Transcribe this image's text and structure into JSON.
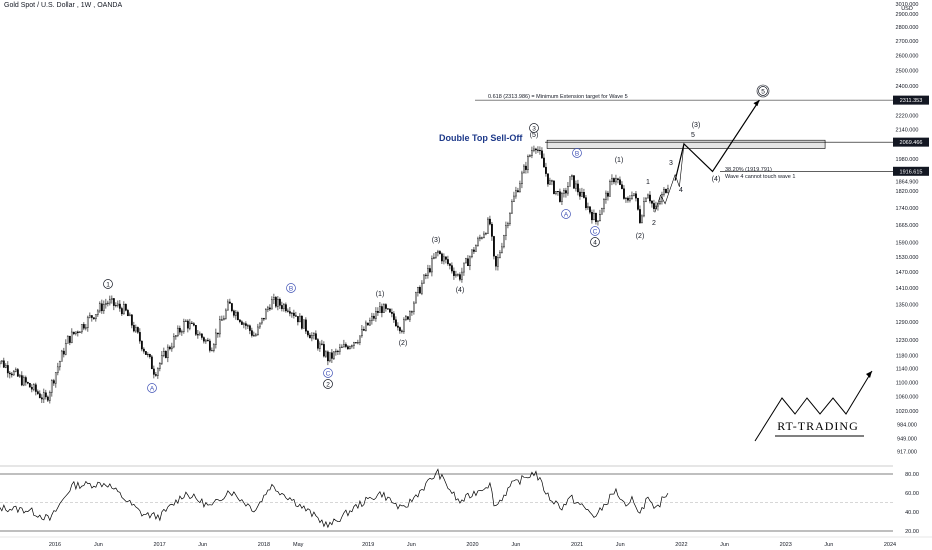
{
  "header": {
    "symbol": "Gold Spot / U.S. Dollar",
    "interval": "1W",
    "exchange": "OANDA",
    "sep1": ",",
    "sep2": ","
  },
  "colors": {
    "background": "#ffffff",
    "candle": "#000000",
    "elliott_circle": "#3f51b5",
    "text": "#131722",
    "price_tag_bg": "#131722",
    "projection": "#000000",
    "rsi_line": "#000000",
    "grid_dash": "#b0b0b0",
    "sell_off_text": "#1e3a8a"
  },
  "chart_data": [
    {
      "type": "candlestick",
      "title": "",
      "price_axis": {
        "unit_label": "USD",
        "ticks": [
          917.0,
          949.0,
          984.0,
          1020.0,
          1060.0,
          1100.0,
          1140.0,
          1180.0,
          1230.0,
          1290.0,
          1350.0,
          1410.0,
          1470.0,
          1530.0,
          1590.0,
          1665.0,
          1740.0,
          1820.0,
          1864.9,
          1980.0,
          2060.0,
          2140.0,
          2220.0,
          2300.0,
          2400.0,
          2500.0,
          2600.0,
          2700.0,
          2800.0,
          2900.0,
          3010.0
        ],
        "tick_labels": [
          "917.000",
          "949.000",
          "984.000",
          "1020.000",
          "1060.000",
          "1100.000",
          "1140.000",
          "1180.000",
          "1230.000",
          "1290.000",
          "1350.000",
          "1410.000",
          "1470.000",
          "1530.000",
          "1590.000",
          "1665.000",
          "1740.000",
          "1820.000",
          "1864.900",
          "1980.000",
          "2060.000",
          "2140.000",
          "2220.000",
          "2300.000",
          "2400.000",
          "2500.000",
          "2600.000",
          "2700.000",
          "2800.000",
          "2900.000",
          "3010.000"
        ],
        "scale": "log"
      },
      "time_axis": {
        "labels": [
          "2016",
          "Jun",
          "2017",
          "Jun",
          "2018",
          "May",
          "2019",
          "Jun",
          "2020",
          "Jun",
          "2021",
          "Jun",
          "2022",
          "Jun",
          "2023",
          "Jun",
          "2024"
        ],
        "label_dates": [
          "2016-01-01",
          "2016-06-01",
          "2017-01-01",
          "2017-06-01",
          "2018-01-01",
          "2018-05-01",
          "2019-01-01",
          "2019-06-01",
          "2020-01-01",
          "2020-06-01",
          "2021-01-01",
          "2021-06-01",
          "2022-01-01",
          "2022-06-01",
          "2023-01-01",
          "2023-06-01",
          "2024-01-01"
        ]
      },
      "price_path": [
        [
          "2015-06-01",
          1180
        ],
        [
          "2015-09-01",
          1110
        ],
        [
          "2015-12-01",
          1050
        ],
        [
          "2016-02-15",
          1230
        ],
        [
          "2016-07-01",
          1360
        ],
        [
          "2016-09-01",
          1330
        ],
        [
          "2016-12-15",
          1130
        ],
        [
          "2017-04-01",
          1290
        ],
        [
          "2017-07-01",
          1210
        ],
        [
          "2017-09-01",
          1350
        ],
        [
          "2017-12-01",
          1240
        ],
        [
          "2018-01-25",
          1360
        ],
        [
          "2018-04-01",
          1340
        ],
        [
          "2018-08-15",
          1170
        ],
        [
          "2018-12-01",
          1240
        ],
        [
          "2019-02-15",
          1340
        ],
        [
          "2019-05-01",
          1270
        ],
        [
          "2019-09-01",
          1550
        ],
        [
          "2019-11-15",
          1450
        ],
        [
          "2020-03-01",
          1680
        ],
        [
          "2020-03-20",
          1470
        ],
        [
          "2020-05-15",
          1750
        ],
        [
          "2020-08-07",
          2070
        ],
        [
          "2020-09-25",
          1860
        ],
        [
          "2020-11-10",
          1780
        ],
        [
          "2020-12-10",
          1880
        ],
        [
          "2021-03-08",
          1680
        ],
        [
          "2021-05-15",
          1900
        ],
        [
          "2021-06-25",
          1750
        ],
        [
          "2021-07-15",
          1830
        ],
        [
          "2021-08-09",
          1690
        ],
        [
          "2021-09-03",
          1830
        ],
        [
          "2021-09-30",
          1720
        ],
        [
          "2021-11-20",
          1870
        ]
      ],
      "elliott_labels": {
        "circled": [
          "1",
          "2",
          "3",
          "4",
          "5"
        ],
        "circled_letters": [
          "A",
          "B",
          "C",
          "A",
          "B",
          "C"
        ],
        "paren": [
          "(1)",
          "(2)",
          "(3)",
          "(4)",
          "(5)",
          "(1)",
          "(2)",
          "(3)",
          "(4)"
        ],
        "plain": [
          "1",
          "2",
          "3",
          "4",
          "5"
        ]
      },
      "annotations": {
        "double_top": "Double Top Sell-Off",
        "fib_extension": "0.618 (2313.986)  = Minimum Extension target for Wave 5",
        "fib_retrace": "38.20% (1919.791)",
        "wave4_note": "Wave 4 cannot touch wave 1",
        "watermark": "RT-TRADING"
      },
      "price_tags": [
        {
          "value": 2311.353,
          "label": "2311.353"
        },
        {
          "value": 2069.466,
          "label": "2069.466"
        },
        {
          "value": 1916.615,
          "label": "1916.615"
        }
      ],
      "resistance_zone": {
        "low": 2035,
        "high": 2080
      },
      "projection": [
        [
          "2021-12-10",
          1870
        ],
        [
          "2022-01-10",
          2060
        ],
        [
          "2022-04-20",
          1916
        ],
        [
          "2022-10-01",
          2311
        ]
      ]
    },
    {
      "type": "line",
      "title": "",
      "ylim": [
        20,
        85
      ],
      "tick_labels": [
        "80.00",
        "60.00",
        "40.00",
        "20.00"
      ],
      "ticks": [
        80,
        60,
        40,
        20
      ],
      "reference_levels": [
        80,
        50,
        20
      ],
      "rsi_path": [
        [
          "2015-06-01",
          45
        ],
        [
          "2015-10-01",
          42
        ],
        [
          "2015-12-15",
          32
        ],
        [
          "2016-03-01",
          68
        ],
        [
          "2016-07-01",
          70
        ],
        [
          "2016-11-01",
          38
        ],
        [
          "2017-01-01",
          35
        ],
        [
          "2017-04-01",
          60
        ],
        [
          "2017-07-01",
          45
        ],
        [
          "2017-09-01",
          63
        ],
        [
          "2017-12-01",
          42
        ],
        [
          "2018-01-25",
          68
        ],
        [
          "2018-04-01",
          55
        ],
        [
          "2018-08-15",
          25
        ],
        [
          "2018-12-01",
          48
        ],
        [
          "2019-02-15",
          60
        ],
        [
          "2019-05-01",
          42
        ],
        [
          "2019-09-01",
          82
        ],
        [
          "2019-11-15",
          50
        ],
        [
          "2020-03-01",
          70
        ],
        [
          "2020-03-20",
          45
        ],
        [
          "2020-05-15",
          68
        ],
        [
          "2020-08-07",
          82
        ],
        [
          "2020-09-25",
          55
        ],
        [
          "2020-11-10",
          45
        ],
        [
          "2020-12-10",
          55
        ],
        [
          "2021-03-08",
          35
        ],
        [
          "2021-05-15",
          63
        ],
        [
          "2021-06-25",
          42
        ],
        [
          "2021-07-15",
          55
        ],
        [
          "2021-08-09",
          38
        ],
        [
          "2021-09-03",
          55
        ],
        [
          "2021-09-30",
          40
        ],
        [
          "2021-11-20",
          65
        ]
      ]
    }
  ]
}
